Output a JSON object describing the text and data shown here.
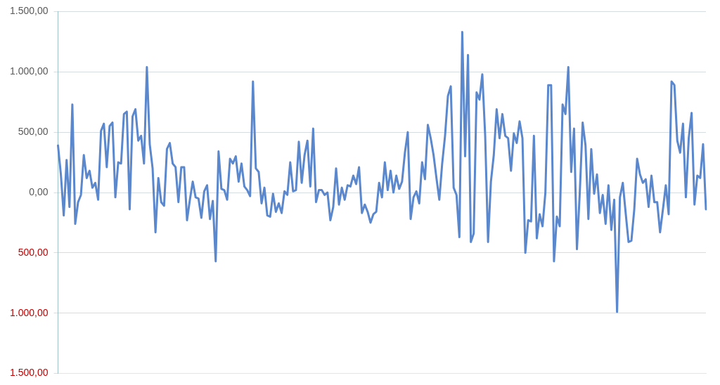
{
  "chart_data": {
    "type": "line",
    "categories": [
      null,
      null,
      null,
      null,
      null,
      null,
      null,
      null,
      null,
      null,
      null,
      null,
      null,
      null,
      null,
      null,
      null,
      null,
      null,
      null,
      null,
      null,
      null,
      null,
      null,
      null,
      null,
      null,
      null,
      null,
      null,
      null,
      null,
      null,
      null,
      null,
      null,
      null,
      null,
      null,
      null,
      null,
      null,
      null,
      null,
      null,
      null,
      null,
      null,
      null,
      null,
      null,
      null,
      null,
      null,
      null,
      null,
      null,
      null,
      null,
      null,
      null,
      null,
      null,
      null,
      null,
      null,
      null,
      null,
      null,
      null,
      null,
      null,
      null,
      null,
      null,
      null,
      null,
      null,
      null,
      null,
      null,
      null,
      null,
      null,
      null,
      null,
      null,
      null,
      null,
      null,
      null,
      null,
      null,
      null,
      null,
      null,
      null,
      null,
      null,
      null,
      null,
      null,
      null,
      null,
      null,
      null,
      null,
      null,
      null,
      null,
      null,
      null,
      null,
      null,
      null,
      null,
      null,
      null,
      null,
      null,
      null,
      null,
      null,
      null,
      null,
      null,
      null,
      null,
      null,
      null,
      null,
      null,
      null,
      null,
      null,
      null,
      null,
      null,
      null,
      null,
      null,
      null,
      null,
      null,
      null,
      null,
      null,
      null,
      null,
      null,
      null,
      null,
      null,
      null,
      null,
      null,
      null,
      null,
      null,
      null,
      null,
      null,
      null,
      null,
      null,
      null,
      null,
      null,
      null,
      null,
      null,
      null,
      null,
      null,
      null,
      null,
      null,
      null,
      null,
      null,
      null,
      null,
      null,
      null,
      null,
      null,
      null,
      null,
      null,
      null,
      null,
      null,
      null,
      null,
      null,
      null,
      null,
      null,
      null,
      null,
      null,
      null,
      null,
      null,
      null,
      null,
      null,
      null,
      null,
      null,
      null,
      null,
      null,
      null,
      null,
      null,
      null,
      null,
      null,
      null,
      null,
      null,
      null,
      null,
      null,
      null
    ],
    "ylim": [
      -1500,
      1500
    ],
    "yticks": [
      {
        "value": -1500,
        "label": "1.500,00"
      },
      {
        "value": -1000,
        "label": "1.000,00"
      },
      {
        "value": -500,
        "label": "500,00"
      },
      {
        "value": 0,
        "label": "0,00"
      },
      {
        "value": 500,
        "label": "500,00"
      },
      {
        "value": 1000,
        "label": "1.000,00"
      },
      {
        "value": 1500,
        "label": "1.500,00"
      }
    ],
    "tick_labels": "y",
    "grid": "y",
    "legend": false,
    "marker": "none",
    "line_style": "solid",
    "series": [
      {
        "color": "#5b87cc",
        "values": [
          390,
          150,
          -190,
          270,
          -120,
          730,
          -260,
          -80,
          -20,
          310,
          120,
          180,
          40,
          80,
          -60,
          510,
          570,
          210,
          550,
          580,
          -40,
          250,
          240,
          650,
          670,
          -140,
          630,
          690,
          430,
          470,
          240,
          1040,
          400,
          200,
          -330,
          120,
          -80,
          -110,
          360,
          410,
          240,
          210,
          -80,
          210,
          210,
          -230,
          -60,
          90,
          -40,
          -50,
          -210,
          10,
          60,
          -220,
          -70,
          -570,
          340,
          30,
          20,
          -60,
          280,
          240,
          300,
          90,
          240,
          50,
          20,
          -30,
          920,
          200,
          170,
          -90,
          40,
          -190,
          -200,
          -10,
          -160,
          -90,
          -170,
          10,
          -20,
          250,
          10,
          20,
          420,
          80,
          310,
          430,
          50,
          530,
          -80,
          20,
          20,
          -20,
          0,
          -230,
          -120,
          200,
          -100,
          40,
          -60,
          60,
          50,
          140,
          70,
          210,
          -170,
          -100,
          -160,
          -250,
          -180,
          -160,
          80,
          -40,
          250,
          20,
          180,
          0,
          140,
          30,
          90,
          330,
          500,
          -220,
          -40,
          10,
          -90,
          250,
          110,
          560,
          450,
          310,
          120,
          -60,
          240,
          470,
          800,
          880,
          40,
          -20,
          -370,
          1330,
          300,
          1140,
          -410,
          -340,
          830,
          770,
          980,
          470,
          -410,
          90,
          310,
          690,
          450,
          650,
          470,
          450,
          180,
          490,
          410,
          590,
          450,
          -500,
          -230,
          -240,
          470,
          -380,
          -180,
          -280,
          0,
          890,
          890,
          -570,
          -200,
          -280,
          730,
          650,
          1040,
          170,
          530,
          -470,
          0,
          580,
          390,
          -220,
          360,
          -10,
          150,
          -170,
          -20,
          -260,
          60,
          -310,
          -60,
          -990,
          -40,
          80,
          -170,
          -410,
          -400,
          -140,
          280,
          150,
          80,
          110,
          -120,
          140,
          -80,
          -80,
          -330,
          -140,
          60,
          -180,
          920,
          890,
          430,
          330,
          570,
          -40,
          450,
          660,
          -100,
          140,
          120,
          400,
          -140
        ]
      }
    ]
  }
}
